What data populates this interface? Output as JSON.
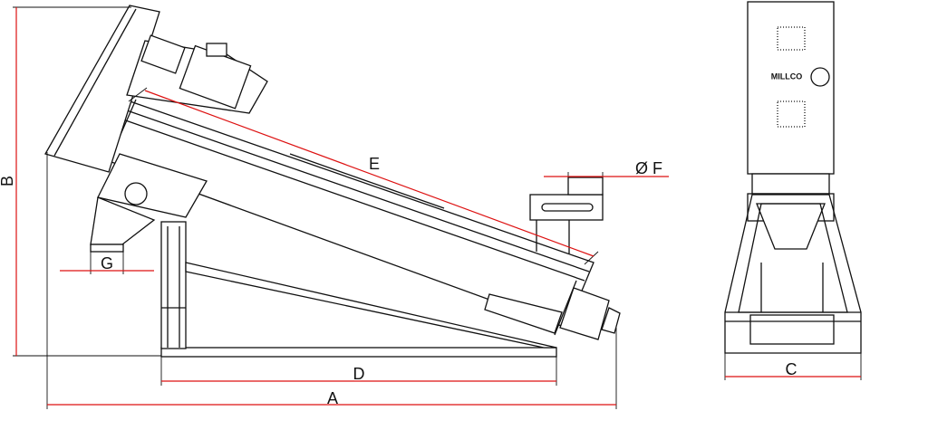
{
  "labels": {
    "a": "A",
    "b": "B",
    "c": "C",
    "d": "D",
    "e": "E",
    "f": "Ø F",
    "g": "G"
  },
  "front_view": {
    "logo": "MILLCO"
  }
}
